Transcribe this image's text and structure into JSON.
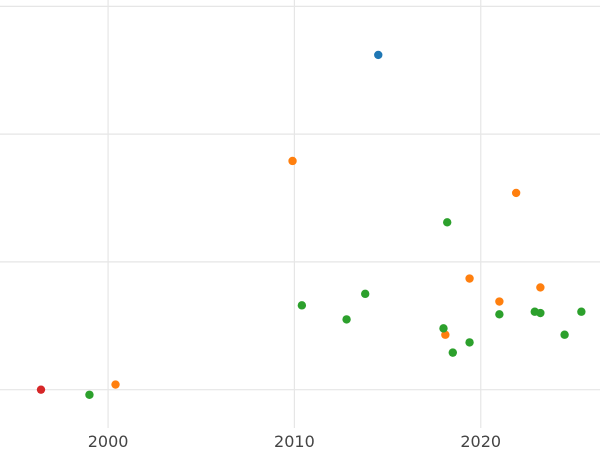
{
  "chart_data": {
    "type": "scatter",
    "title": "",
    "xlabel": "",
    "ylabel": "",
    "xlim": [
      1994.2,
      2026.4
    ],
    "ylim": [
      -0.3,
      3.05
    ],
    "xticks": [
      2000,
      2010,
      2020
    ],
    "xtick_labels": [
      "2000",
      "2010",
      "2020"
    ],
    "yticks": [
      0,
      1,
      2,
      3
    ],
    "ytick_labels": [],
    "grid": true,
    "legend": "none",
    "series": [
      {
        "color": "#1f77b4",
        "points": [
          {
            "x": 2014.5,
            "y": 2.62
          }
        ]
      },
      {
        "color": "#ff7f0e",
        "points": [
          {
            "x": 2000.4,
            "y": 0.04
          },
          {
            "x": 2009.9,
            "y": 1.79
          },
          {
            "x": 2018.1,
            "y": 0.43
          },
          {
            "x": 2019.4,
            "y": 0.87
          },
          {
            "x": 2021.0,
            "y": 0.69
          },
          {
            "x": 2021.9,
            "y": 1.54
          },
          {
            "x": 2023.2,
            "y": 0.8
          }
        ]
      },
      {
        "color": "#2ca02c",
        "points": [
          {
            "x": 1999.0,
            "y": -0.04
          },
          {
            "x": 2010.4,
            "y": 0.66
          },
          {
            "x": 2012.8,
            "y": 0.55
          },
          {
            "x": 2013.8,
            "y": 0.75
          },
          {
            "x": 2018.0,
            "y": 0.48
          },
          {
            "x": 2018.2,
            "y": 1.31
          },
          {
            "x": 2018.5,
            "y": 0.29
          },
          {
            "x": 2019.4,
            "y": 0.37
          },
          {
            "x": 2021.0,
            "y": 0.59
          },
          {
            "x": 2022.9,
            "y": 0.61
          },
          {
            "x": 2023.2,
            "y": 0.6
          },
          {
            "x": 2024.5,
            "y": 0.43
          },
          {
            "x": 2025.4,
            "y": 0.61
          }
        ]
      },
      {
        "color": "#d62728",
        "points": [
          {
            "x": 1996.4,
            "y": 0.0
          }
        ]
      }
    ]
  }
}
